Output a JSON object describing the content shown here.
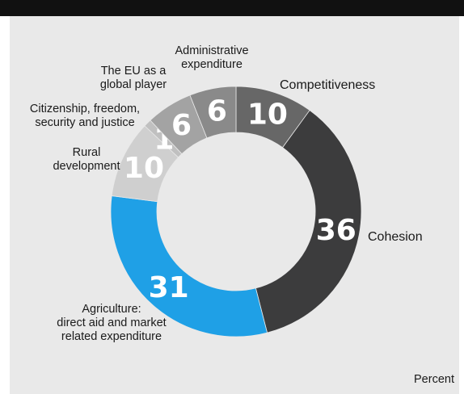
{
  "chart_data": {
    "type": "pie",
    "subtype": "donut",
    "unit_label": "Percent",
    "slices": [
      {
        "label": "Competitiveness",
        "lines": [
          "Competitiveness"
        ],
        "value": 10,
        "color": "#676767"
      },
      {
        "label": "Cohesion",
        "lines": [
          "Cohesion"
        ],
        "value": 36,
        "color": "#3c3c3d"
      },
      {
        "label": "Agriculture: direct aid and market related expenditure",
        "lines": [
          "Agriculture:",
          "direct aid and market",
          "related expenditure"
        ],
        "value": 31,
        "color": "#1fa0e6"
      },
      {
        "label": "Rural development",
        "lines": [
          "Rural",
          "development"
        ],
        "value": 10,
        "color": "#cfcfcf"
      },
      {
        "label": "Citizenship, freedom, security and justice",
        "lines": [
          "Citizenship, freedom,",
          "security and justice"
        ],
        "value": 1,
        "color": "#c0c0c0"
      },
      {
        "label": "The EU as a global player",
        "lines": [
          "The EU as a",
          "global player"
        ],
        "value": 6,
        "color": "#a3a3a3"
      },
      {
        "label": "Administrative expenditure",
        "lines": [
          "Administrative",
          "expenditure"
        ],
        "value": 6,
        "color": "#8a8a8a"
      }
    ]
  }
}
